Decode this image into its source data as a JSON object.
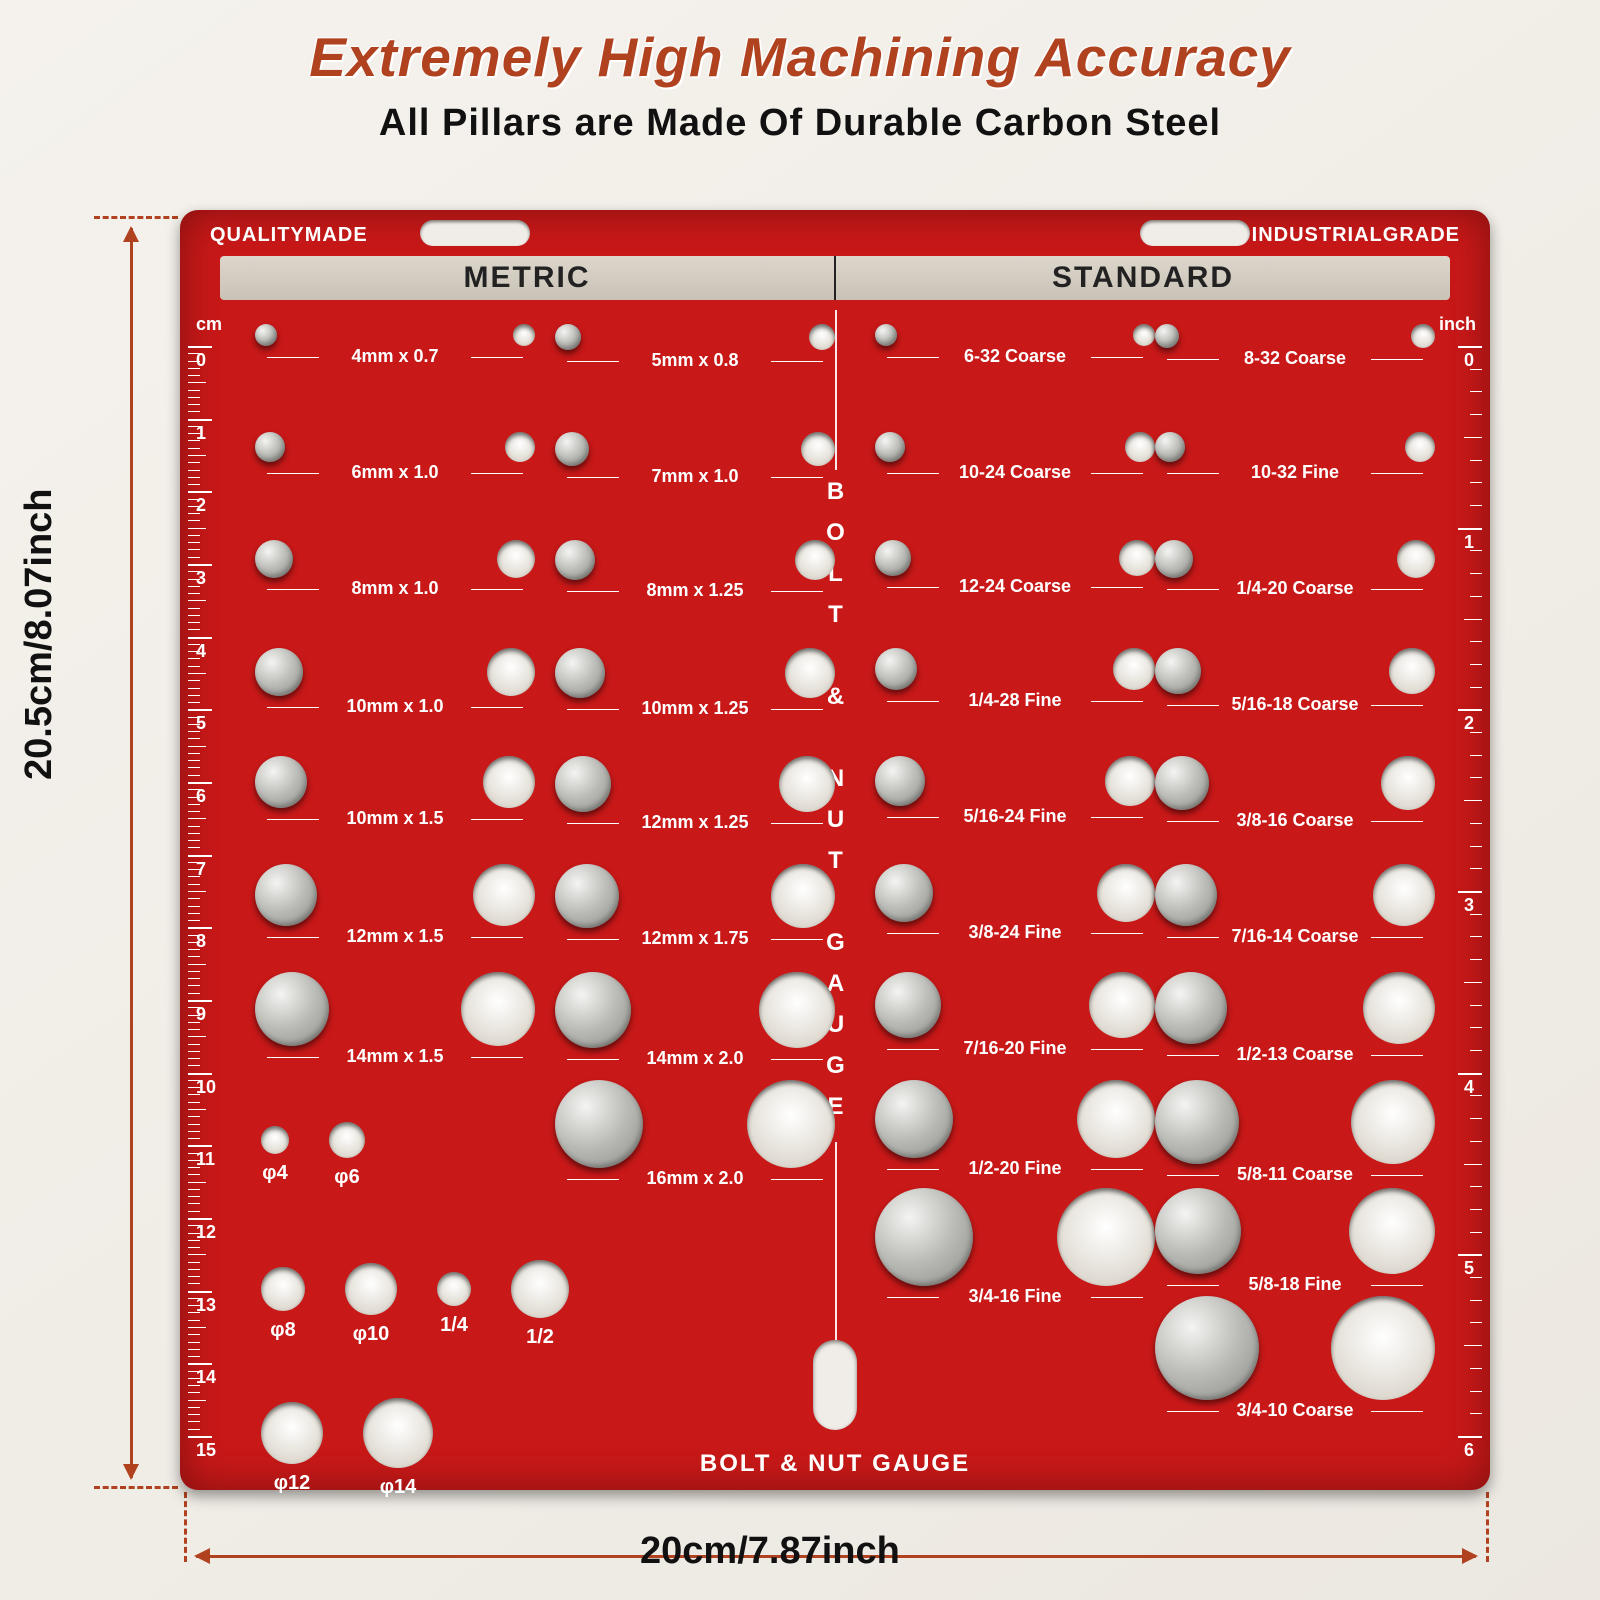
{
  "title_main": "Extremely High Machining Accuracy",
  "title_sub": "All Pillars are Made Of Durable Carbon Steel",
  "dim_height": "20.5cm/8.07inch",
  "dim_width": "20cm/7.87inch",
  "corner_left": "QUALITYMADE",
  "corner_right": "INDUSTRIALGRADE",
  "header_left": "METRIC",
  "header_right": "STANDARD",
  "vertical_text": "BOLT & NUT GAUGE",
  "bottom_title": "BOLT & NUT GAUGE",
  "ruler_left_unit": "cm",
  "ruler_right_unit": "inch",
  "ruler_cm_max": 15,
  "ruler_inch_max": 6,
  "colors": {
    "plate": "#c81818",
    "accent": "#b0421f",
    "header_strip": "#d2cbbf",
    "text_dark": "#111111",
    "text_light": "#ffffff",
    "background": "#f0ede8"
  },
  "metric_col1": [
    {
      "label": "4mm x 0.7",
      "d": 22
    },
    {
      "label": "6mm x 1.0",
      "d": 30
    },
    {
      "label": "8mm x 1.0",
      "d": 38
    },
    {
      "label": "10mm x 1.0",
      "d": 48
    },
    {
      "label": "10mm x 1.5",
      "d": 52
    },
    {
      "label": "12mm x 1.5",
      "d": 62
    },
    {
      "label": "14mm x 1.5",
      "d": 74
    }
  ],
  "metric_col2": [
    {
      "label": "5mm x 0.8",
      "d": 26
    },
    {
      "label": "7mm x 1.0",
      "d": 34
    },
    {
      "label": "8mm x 1.25",
      "d": 40
    },
    {
      "label": "10mm x 1.25",
      "d": 50
    },
    {
      "label": "12mm x 1.25",
      "d": 56
    },
    {
      "label": "12mm x 1.75",
      "d": 64
    },
    {
      "label": "14mm x 2.0",
      "d": 76
    },
    {
      "label": "16mm x 2.0",
      "d": 88
    }
  ],
  "std_col1": [
    {
      "label": "6-32 Coarse",
      "d": 22
    },
    {
      "label": "10-24 Coarse",
      "d": 30
    },
    {
      "label": "12-24 Coarse",
      "d": 36
    },
    {
      "label": "1/4-28 Fine",
      "d": 42
    },
    {
      "label": "5/16-24 Fine",
      "d": 50
    },
    {
      "label": "3/8-24 Fine",
      "d": 58
    },
    {
      "label": "7/16-20 Fine",
      "d": 66
    },
    {
      "label": "1/2-20 Fine",
      "d": 78
    },
    {
      "label": "3/4-16 Fine",
      "d": 98
    }
  ],
  "std_col2": [
    {
      "label": "8-32 Coarse",
      "d": 24
    },
    {
      "label": "10-32 Fine",
      "d": 30
    },
    {
      "label": "1/4-20 Coarse",
      "d": 38
    },
    {
      "label": "5/16-18 Coarse",
      "d": 46
    },
    {
      "label": "3/8-16 Coarse",
      "d": 54
    },
    {
      "label": "7/16-14 Coarse",
      "d": 62
    },
    {
      "label": "1/2-13 Coarse",
      "d": 72
    },
    {
      "label": "5/8-11 Coarse",
      "d": 84
    },
    {
      "label": "5/8-18 Fine",
      "d": 86
    },
    {
      "label": "3/4-10 Coarse",
      "d": 104
    }
  ],
  "phi_row1": [
    {
      "label": "φ4",
      "d": 28
    },
    {
      "label": "φ6",
      "d": 36
    }
  ],
  "phi_row2": [
    {
      "label": "φ8",
      "d": 44
    },
    {
      "label": "φ10",
      "d": 52
    },
    {
      "label": "1/4",
      "d": 34
    },
    {
      "label": "1/2",
      "d": 58
    }
  ],
  "phi_row3": [
    {
      "label": "φ12",
      "d": 62
    },
    {
      "label": "φ14",
      "d": 70
    }
  ]
}
